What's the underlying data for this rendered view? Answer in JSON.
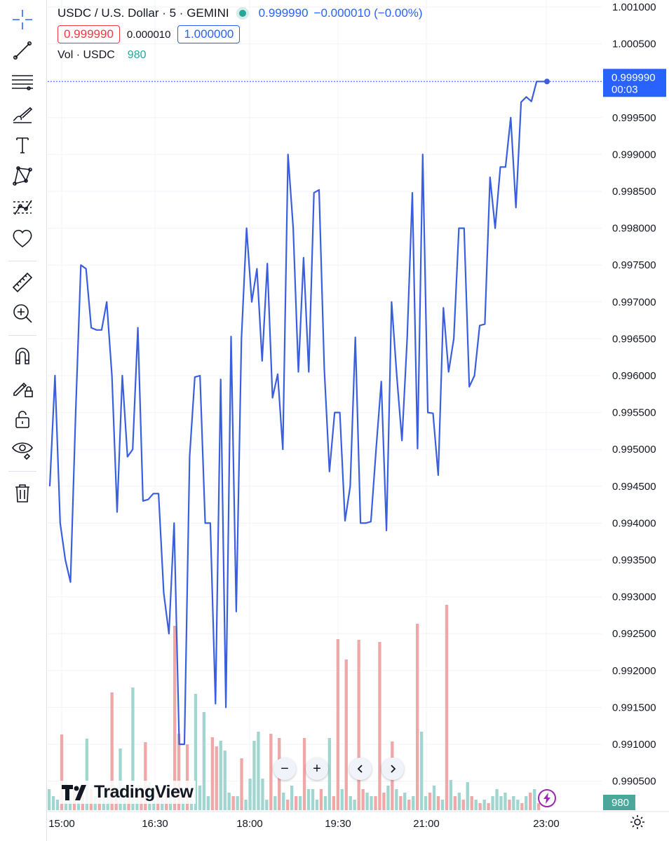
{
  "toolbar": {
    "tools": [
      {
        "name": "crosshair-icon"
      },
      {
        "name": "trend-line-icon"
      },
      {
        "name": "horizontal-lines-icon"
      },
      {
        "name": "brush-icon"
      },
      {
        "name": "text-icon"
      },
      {
        "name": "pattern-icon"
      },
      {
        "name": "prediction-icon"
      },
      {
        "name": "heart-icon"
      },
      {
        "name": "ruler-icon"
      },
      {
        "name": "zoom-in-icon"
      },
      {
        "name": "magnet-icon"
      },
      {
        "name": "lock-drawing-icon"
      },
      {
        "name": "unlock-icon"
      },
      {
        "name": "eye-icon"
      },
      {
        "name": "trash-icon"
      }
    ]
  },
  "legend": {
    "title": "USDC / U.S. Dollar · 5 · GEMINI",
    "last": "0.999990",
    "change": "−0.000010 (−0.00%)",
    "sell": "0.999990",
    "spread": "0.000010",
    "buy": "1.000000",
    "vol_label": "Vol · USDC",
    "vol_value": "980"
  },
  "price_tag": {
    "price": "0.999990",
    "countdown": "00:03"
  },
  "volume_tag": "980",
  "branding": {
    "logo_text": "TradingView"
  },
  "colors": {
    "line": "#3a5fde",
    "up": "#26a69a",
    "down": "#ef5350",
    "up_bar": "#9fd6cf",
    "down_bar": "#efa7a7",
    "accent": "#2962ff"
  },
  "chart_data": {
    "type": "line",
    "ylim": [
      0.99005,
      1.00105
    ],
    "yticks": [
      "1.001000",
      "1.000500",
      "0.999500",
      "0.999000",
      "0.998500",
      "0.998000",
      "0.997500",
      "0.997000",
      "0.996500",
      "0.996000",
      "0.995500",
      "0.995000",
      "0.994500",
      "0.994000",
      "0.993500",
      "0.993000",
      "0.992500",
      "0.992000",
      "0.991500",
      "0.991000",
      "0.990500"
    ],
    "xticks": [
      "15:00",
      "16:30",
      "18:00",
      "19:30",
      "21:00",
      "23:00"
    ],
    "price_series": [
      0.9945,
      0.996,
      0.994,
      0.9935,
      0.9932,
      0.9955,
      0.9975,
      0.99745,
      0.99665,
      0.99662,
      0.99662,
      0.997,
      0.996,
      0.99415,
      0.996,
      0.9949,
      0.995,
      0.99665,
      0.9943,
      0.99432,
      0.9944,
      0.9944,
      0.99305,
      0.9925,
      0.994,
      0.991,
      0.991,
      0.9949,
      0.99598,
      0.996,
      0.994,
      0.994,
      0.99155,
      0.99595,
      0.9915,
      0.99653,
      0.9928,
      0.9965,
      0.998,
      0.997,
      0.99745,
      0.9962,
      0.99752,
      0.9957,
      0.99602,
      0.995,
      0.999,
      0.998,
      0.99605,
      0.9976,
      0.99605,
      0.99848,
      0.99852,
      0.9961,
      0.9947,
      0.9955,
      0.9955,
      0.99403,
      0.9945,
      0.99652,
      0.994,
      0.994,
      0.99402,
      0.995,
      0.99592,
      0.9939,
      0.997,
      0.996,
      0.99512,
      0.9965,
      0.99848,
      0.99501,
      0.999,
      0.9955,
      0.99549,
      0.99465,
      0.99692,
      0.99605,
      0.9965,
      0.998,
      0.998,
      0.99585,
      0.996,
      0.99668,
      0.9967,
      0.99869,
      0.998,
      0.99883,
      0.99883,
      0.9995,
      0.99828,
      0.99971,
      0.99978,
      0.99972,
      0.99999,
      0.99999,
      0.99999
    ],
    "volume_series": [
      {
        "v": 3.0,
        "d": "up"
      },
      {
        "v": 2.0,
        "d": "up"
      },
      {
        "v": 1.5,
        "d": "up"
      },
      {
        "v": 10.8,
        "d": "down"
      },
      {
        "v": 4.0,
        "d": "up"
      },
      {
        "v": 2.5,
        "d": "up"
      },
      {
        "v": 3.0,
        "d": "down"
      },
      {
        "v": 2.0,
        "d": "up"
      },
      {
        "v": 2.0,
        "d": "down"
      },
      {
        "v": 10.2,
        "d": "up"
      },
      {
        "v": 3.0,
        "d": "down"
      },
      {
        "v": 2.0,
        "d": "up"
      },
      {
        "v": 2.0,
        "d": "down"
      },
      {
        "v": 3.5,
        "d": "up"
      },
      {
        "v": 2.5,
        "d": "up"
      },
      {
        "v": 16.8,
        "d": "down"
      },
      {
        "v": 3.0,
        "d": "down"
      },
      {
        "v": 8.8,
        "d": "up"
      },
      {
        "v": 3.0,
        "d": "up"
      },
      {
        "v": 2.0,
        "d": "down"
      },
      {
        "v": 17.5,
        "d": "up"
      },
      {
        "v": 3.0,
        "d": "up"
      },
      {
        "v": 2.0,
        "d": "down"
      },
      {
        "v": 9.7,
        "d": "down"
      },
      {
        "v": 4.0,
        "d": "up"
      },
      {
        "v": 2.5,
        "d": "up"
      },
      {
        "v": 3.0,
        "d": "down"
      },
      {
        "v": 1.5,
        "d": "up"
      },
      {
        "v": 2.5,
        "d": "down"
      },
      {
        "v": 2.0,
        "d": "up"
      },
      {
        "v": 26.3,
        "d": "down"
      },
      {
        "v": 10.9,
        "d": "down"
      },
      {
        "v": 3.0,
        "d": "up"
      },
      {
        "v": 9.4,
        "d": "down"
      },
      {
        "v": 1.5,
        "d": "up"
      },
      {
        "v": 16.6,
        "d": "up"
      },
      {
        "v": 3.5,
        "d": "up"
      },
      {
        "v": 14.0,
        "d": "up"
      },
      {
        "v": 2.0,
        "d": "up"
      },
      {
        "v": 10.4,
        "d": "down"
      },
      {
        "v": 9.1,
        "d": "down"
      },
      {
        "v": 9.9,
        "d": "up"
      },
      {
        "v": 8.5,
        "d": "up"
      },
      {
        "v": 2.5,
        "d": "up"
      },
      {
        "v": 2.0,
        "d": "down"
      },
      {
        "v": 2.0,
        "d": "up"
      },
      {
        "v": 7.4,
        "d": "down"
      },
      {
        "v": 1.5,
        "d": "up"
      },
      {
        "v": 4.5,
        "d": "up"
      },
      {
        "v": 9.9,
        "d": "up"
      },
      {
        "v": 11.2,
        "d": "up"
      },
      {
        "v": 4.5,
        "d": "up"
      },
      {
        "v": 1.5,
        "d": "up"
      },
      {
        "v": 10.9,
        "d": "down"
      },
      {
        "v": 2.0,
        "d": "up"
      },
      {
        "v": 10.3,
        "d": "down"
      },
      {
        "v": 2.5,
        "d": "up"
      },
      {
        "v": 1.5,
        "d": "down"
      },
      {
        "v": 3.5,
        "d": "up"
      },
      {
        "v": 2.0,
        "d": "down"
      },
      {
        "v": 2.0,
        "d": "up"
      },
      {
        "v": 10.3,
        "d": "down"
      },
      {
        "v": 3.0,
        "d": "up"
      },
      {
        "v": 3.0,
        "d": "up"
      },
      {
        "v": 1.5,
        "d": "up"
      },
      {
        "v": 3.0,
        "d": "down"
      },
      {
        "v": 2.0,
        "d": "up"
      },
      {
        "v": 10.3,
        "d": "up"
      },
      {
        "v": 2.0,
        "d": "down"
      },
      {
        "v": 24.4,
        "d": "down"
      },
      {
        "v": 3.0,
        "d": "up"
      },
      {
        "v": 21.5,
        "d": "down"
      },
      {
        "v": 2.0,
        "d": "up"
      },
      {
        "v": 1.5,
        "d": "up"
      },
      {
        "v": 24.3,
        "d": "down"
      },
      {
        "v": 3.0,
        "d": "down"
      },
      {
        "v": 2.5,
        "d": "up"
      },
      {
        "v": 2.0,
        "d": "up"
      },
      {
        "v": 2.0,
        "d": "down"
      },
      {
        "v": 24.0,
        "d": "down"
      },
      {
        "v": 2.5,
        "d": "down"
      },
      {
        "v": 3.5,
        "d": "up"
      },
      {
        "v": 9.8,
        "d": "down"
      },
      {
        "v": 3.0,
        "d": "up"
      },
      {
        "v": 2.0,
        "d": "down"
      },
      {
        "v": 2.5,
        "d": "up"
      },
      {
        "v": 1.5,
        "d": "down"
      },
      {
        "v": 2.0,
        "d": "up"
      },
      {
        "v": 26.6,
        "d": "down"
      },
      {
        "v": 11.2,
        "d": "up"
      },
      {
        "v": 2.0,
        "d": "up"
      },
      {
        "v": 2.5,
        "d": "down"
      },
      {
        "v": 3.5,
        "d": "up"
      },
      {
        "v": 2.0,
        "d": "down"
      },
      {
        "v": 1.5,
        "d": "up"
      },
      {
        "v": 29.3,
        "d": "down"
      },
      {
        "v": 4.3,
        "d": "up"
      },
      {
        "v": 2.0,
        "d": "down"
      },
      {
        "v": 2.5,
        "d": "up"
      },
      {
        "v": 1.5,
        "d": "down"
      },
      {
        "v": 4.0,
        "d": "up"
      },
      {
        "v": 2.0,
        "d": "down"
      },
      {
        "v": 1.5,
        "d": "up"
      },
      {
        "v": 1.0,
        "d": "down"
      },
      {
        "v": 1.5,
        "d": "up"
      },
      {
        "v": 1.0,
        "d": "down"
      },
      {
        "v": 2.0,
        "d": "up"
      },
      {
        "v": 3.0,
        "d": "up"
      },
      {
        "v": 2.0,
        "d": "up"
      },
      {
        "v": 2.5,
        "d": "up"
      },
      {
        "v": 1.5,
        "d": "down"
      },
      {
        "v": 2.0,
        "d": "up"
      },
      {
        "v": 1.5,
        "d": "up"
      },
      {
        "v": 1.0,
        "d": "down"
      },
      {
        "v": 2.0,
        "d": "up"
      },
      {
        "v": 2.5,
        "d": "down"
      },
      {
        "v": 3.0,
        "d": "up"
      },
      {
        "v": 1.0,
        "d": "down"
      }
    ],
    "volume_max": 30
  }
}
